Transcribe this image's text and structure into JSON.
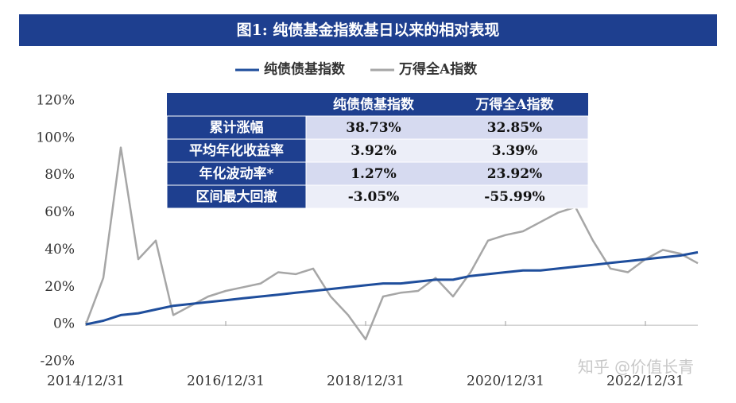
{
  "chart_data": {
    "type": "line",
    "title": "图1: 纯债基金指数基日以来的相对表现",
    "categories": [
      "2014/12/31",
      null,
      null,
      null,
      null,
      null,
      null,
      null,
      "2016/12/31",
      null,
      null,
      null,
      null,
      null,
      null,
      null,
      "2018/12/31",
      null,
      null,
      null,
      null,
      null,
      null,
      null,
      "2020/12/31",
      null,
      null,
      null,
      null,
      null,
      null,
      null,
      "2022/12/31",
      null,
      null,
      null
    ],
    "series": [
      {
        "name": "纯债债基指数",
        "color": "#1f4e9c",
        "values": [
          0,
          2,
          5,
          6,
          8,
          10,
          11,
          12,
          13,
          14,
          15,
          16,
          17,
          18,
          19,
          20,
          21,
          22,
          22,
          23,
          24,
          24,
          26,
          27,
          28,
          29,
          29,
          30,
          31,
          32,
          33,
          34,
          35,
          36,
          37,
          38.73
        ]
      },
      {
        "name": "万得全A指数",
        "color": "#a6a6a6",
        "values": [
          0,
          25,
          95,
          35,
          45,
          5,
          10,
          15,
          18,
          20,
          22,
          28,
          27,
          30,
          15,
          5,
          -8,
          15,
          17,
          18,
          25,
          15,
          28,
          45,
          48,
          50,
          55,
          60,
          63,
          45,
          30,
          28,
          35,
          40,
          38,
          32.85
        ]
      }
    ],
    "ylim": [
      -20,
      120
    ],
    "yticks": [
      {
        "value": -20,
        "label": "-20%"
      },
      {
        "value": 0,
        "label": "0%"
      },
      {
        "value": 20,
        "label": "20%"
      },
      {
        "value": 40,
        "label": "40%"
      },
      {
        "value": 60,
        "label": "60%"
      },
      {
        "value": 80,
        "label": "80%"
      },
      {
        "value": 100,
        "label": "100%"
      },
      {
        "value": 120,
        "label": "120%"
      }
    ],
    "grid": false
  },
  "table": {
    "columns": [
      "纯债债基指数",
      "万得全A指数"
    ],
    "rows": [
      [
        "累计涨幅",
        "38.73%",
        "32.85%"
      ],
      [
        "平均年化收益率",
        "3.92%",
        "3.39%"
      ],
      [
        "年化波动率*",
        "1.27%",
        "23.92%"
      ],
      [
        "区间最大回撤",
        "-3.05%",
        "-55.99%"
      ]
    ]
  },
  "watermark": "知乎 @价值长青"
}
